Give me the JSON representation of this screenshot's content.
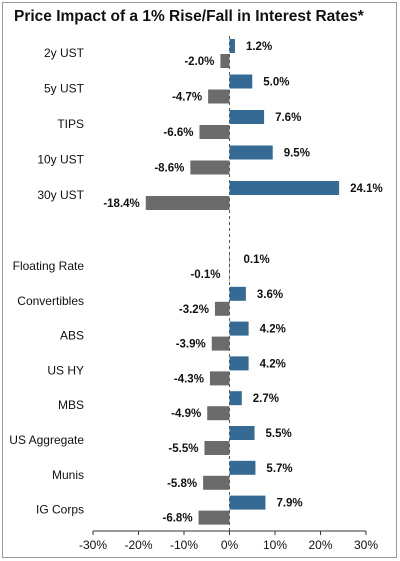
{
  "chart_data": {
    "type": "bar",
    "orientation": "horizontal",
    "title": "Price Impact of a 1% Rise/Fall in Interest Rates*",
    "xlim": [
      -30,
      30
    ],
    "xticks": [
      -30,
      -20,
      -10,
      0,
      10,
      20,
      30
    ],
    "tick_format": "percent",
    "grid": false,
    "legend": "none",
    "categories": [
      "2y UST",
      "5y UST",
      "TIPS",
      "10y UST",
      "30y UST",
      "Floating Rate",
      "Convertibles",
      "ABS",
      "US HY",
      "MBS",
      "US Aggregate",
      "Munis",
      "IG Corps"
    ],
    "groups": [
      [
        "2y UST",
        "5y UST",
        "TIPS",
        "10y UST",
        "30y UST"
      ],
      [
        "Floating Rate",
        "Convertibles",
        "ABS",
        "US HY",
        "MBS",
        "US Aggregate",
        "Munis",
        "IG Corps"
      ]
    ],
    "series": [
      {
        "values": [
          1.2,
          5.0,
          7.6,
          9.5,
          24.1,
          0.1,
          3.6,
          4.2,
          4.2,
          2.7,
          5.5,
          5.7,
          7.9
        ],
        "color": "#356a94"
      },
      {
        "values": [
          -2.0,
          -4.7,
          -6.6,
          -8.6,
          -18.4,
          -0.1,
          -3.2,
          -3.9,
          -4.3,
          -4.9,
          -5.5,
          -5.8,
          -6.8
        ],
        "color": "#6b6b6b"
      }
    ]
  }
}
